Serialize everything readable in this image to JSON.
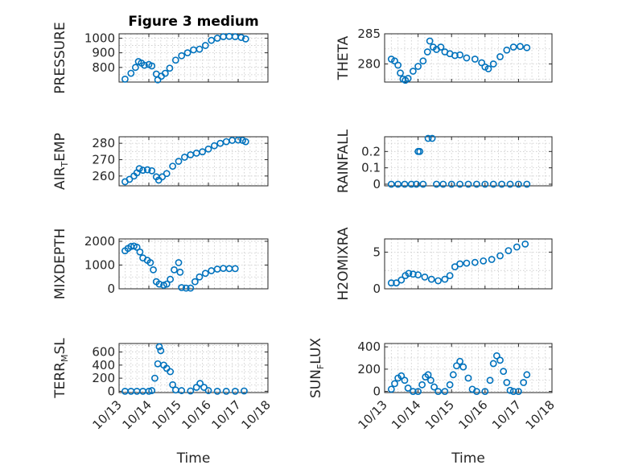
{
  "figure": {
    "title": "Figure 3 medium"
  },
  "style": {
    "marker_color": "#0072bd",
    "axis_color": "#262626",
    "grid_color": "#c8c8c8"
  },
  "chart_data": [
    {
      "type": "scatter",
      "id": "pressure",
      "title": "Figure 3 medium",
      "ylabel": "PRESSURE",
      "ylabel_parts": [
        {
          "t": "PRESSURE"
        }
      ],
      "xlim": [
        0,
        5
      ],
      "ylim": [
        700,
        1030
      ],
      "yticks": [
        {
          "v": 800,
          "label": "800"
        },
        {
          "v": 900,
          "label": "900"
        },
        {
          "v": 1000,
          "label": "1000"
        }
      ],
      "xticks": [
        0,
        1,
        2,
        3,
        4,
        5
      ],
      "points": [
        [
          0.2,
          720
        ],
        [
          0.4,
          760
        ],
        [
          0.55,
          800
        ],
        [
          0.65,
          840
        ],
        [
          0.75,
          830
        ],
        [
          0.85,
          815
        ],
        [
          1.0,
          820
        ],
        [
          1.1,
          810
        ],
        [
          1.25,
          755
        ],
        [
          1.3,
          715
        ],
        [
          1.42,
          740
        ],
        [
          1.55,
          760
        ],
        [
          1.7,
          795
        ],
        [
          1.9,
          850
        ],
        [
          2.1,
          880
        ],
        [
          2.3,
          900
        ],
        [
          2.5,
          920
        ],
        [
          2.7,
          925
        ],
        [
          2.9,
          950
        ],
        [
          3.1,
          985
        ],
        [
          3.3,
          1000
        ],
        [
          3.5,
          1010
        ],
        [
          3.7,
          1012
        ],
        [
          3.9,
          1010
        ],
        [
          4.1,
          1005
        ],
        [
          4.25,
          995
        ]
      ]
    },
    {
      "type": "scatter",
      "id": "theta",
      "ylabel": "THETA",
      "ylabel_parts": [
        {
          "t": "THETA"
        }
      ],
      "xlim": [
        0,
        5
      ],
      "ylim": [
        277,
        285
      ],
      "yticks": [
        {
          "v": 280,
          "label": "280"
        },
        {
          "v": 285,
          "label": "285"
        }
      ],
      "xticks": [
        0,
        1,
        2,
        3,
        4,
        5
      ],
      "points": [
        [
          0.2,
          280.8
        ],
        [
          0.3,
          280.5
        ],
        [
          0.4,
          279.8
        ],
        [
          0.47,
          278.5
        ],
        [
          0.55,
          277.5
        ],
        [
          0.62,
          277.3
        ],
        [
          0.7,
          277.6
        ],
        [
          0.85,
          278.8
        ],
        [
          1.0,
          279.6
        ],
        [
          1.15,
          280.5
        ],
        [
          1.28,
          282.0
        ],
        [
          1.35,
          283.8
        ],
        [
          1.45,
          282.8
        ],
        [
          1.55,
          282.4
        ],
        [
          1.68,
          282.8
        ],
        [
          1.8,
          282.0
        ],
        [
          1.95,
          281.7
        ],
        [
          2.1,
          281.4
        ],
        [
          2.25,
          281.5
        ],
        [
          2.45,
          281.0
        ],
        [
          2.7,
          280.8
        ],
        [
          2.9,
          280.2
        ],
        [
          3.0,
          279.5
        ],
        [
          3.1,
          279.2
        ],
        [
          3.25,
          280.0
        ],
        [
          3.45,
          281.2
        ],
        [
          3.65,
          282.3
        ],
        [
          3.85,
          282.8
        ],
        [
          4.05,
          282.9
        ],
        [
          4.25,
          282.7
        ]
      ]
    },
    {
      "type": "scatter",
      "id": "air-temp",
      "ylabel": "AIR_TEMP",
      "ylabel_parts": [
        {
          "t": "AIR"
        },
        {
          "t": "T",
          "sub": true
        },
        {
          "t": "EMP"
        }
      ],
      "xlim": [
        0,
        5
      ],
      "ylim": [
        254,
        284
      ],
      "yticks": [
        {
          "v": 260,
          "label": "260"
        },
        {
          "v": 270,
          "label": "270"
        },
        {
          "v": 280,
          "label": "280"
        }
      ],
      "xticks": [
        0,
        1,
        2,
        3,
        4,
        5
      ],
      "points": [
        [
          0.2,
          256.5
        ],
        [
          0.35,
          258
        ],
        [
          0.5,
          260
        ],
        [
          0.6,
          262
        ],
        [
          0.68,
          264.5
        ],
        [
          0.8,
          263.5
        ],
        [
          0.95,
          263.8
        ],
        [
          1.1,
          263.2
        ],
        [
          1.25,
          259.5
        ],
        [
          1.33,
          257.5
        ],
        [
          1.45,
          259.5
        ],
        [
          1.6,
          261.5
        ],
        [
          1.8,
          266
        ],
        [
          2.0,
          269
        ],
        [
          2.2,
          271.5
        ],
        [
          2.4,
          273
        ],
        [
          2.6,
          274
        ],
        [
          2.8,
          274.8
        ],
        [
          3.0,
          276.5
        ],
        [
          3.2,
          278.5
        ],
        [
          3.4,
          280
        ],
        [
          3.6,
          281
        ],
        [
          3.8,
          281.8
        ],
        [
          4.0,
          282
        ],
        [
          4.15,
          281.8
        ],
        [
          4.25,
          281
        ]
      ]
    },
    {
      "type": "scatter",
      "id": "rainfall",
      "ylabel": "RAINFALL",
      "ylabel_parts": [
        {
          "t": "RAINFALL"
        }
      ],
      "xlim": [
        0,
        5
      ],
      "ylim": [
        -0.01,
        0.29
      ],
      "yticks": [
        {
          "v": 0,
          "label": "0"
        },
        {
          "v": 0.1,
          "label": "0.1"
        },
        {
          "v": 0.2,
          "label": "0.2"
        }
      ],
      "xticks": [
        0,
        1,
        2,
        3,
        4,
        5
      ],
      "points": [
        [
          0.2,
          0
        ],
        [
          0.4,
          0
        ],
        [
          0.6,
          0
        ],
        [
          0.8,
          0
        ],
        [
          0.95,
          0
        ],
        [
          1.0,
          0.2
        ],
        [
          1.05,
          0.2
        ],
        [
          1.15,
          0
        ],
        [
          1.3,
          0.28
        ],
        [
          1.42,
          0.28
        ],
        [
          1.55,
          0
        ],
        [
          1.75,
          0
        ],
        [
          2.0,
          0
        ],
        [
          2.25,
          0
        ],
        [
          2.5,
          0
        ],
        [
          2.75,
          0
        ],
        [
          3.0,
          0
        ],
        [
          3.25,
          0
        ],
        [
          3.5,
          0
        ],
        [
          3.75,
          0
        ],
        [
          4.0,
          0
        ],
        [
          4.25,
          0
        ]
      ]
    },
    {
      "type": "scatter",
      "id": "mixdepth",
      "ylabel": "MIXDEPTH",
      "ylabel_parts": [
        {
          "t": "MIXDEPTH"
        }
      ],
      "xlim": [
        0,
        5
      ],
      "ylim": [
        0,
        2100
      ],
      "yticks": [
        {
          "v": 0,
          "label": "0"
        },
        {
          "v": 1000,
          "label": "1000"
        },
        {
          "v": 2000,
          "label": "2000"
        }
      ],
      "xticks": [
        0,
        1,
        2,
        3,
        4,
        5
      ],
      "points": [
        [
          0.2,
          1600
        ],
        [
          0.3,
          1700
        ],
        [
          0.4,
          1780
        ],
        [
          0.5,
          1800
        ],
        [
          0.6,
          1750
        ],
        [
          0.7,
          1550
        ],
        [
          0.8,
          1300
        ],
        [
          0.95,
          1200
        ],
        [
          1.05,
          1100
        ],
        [
          1.15,
          800
        ],
        [
          1.25,
          300
        ],
        [
          1.35,
          200
        ],
        [
          1.5,
          150
        ],
        [
          1.6,
          200
        ],
        [
          1.72,
          400
        ],
        [
          1.85,
          800
        ],
        [
          2.0,
          1100
        ],
        [
          2.05,
          700
        ],
        [
          2.1,
          50
        ],
        [
          2.25,
          30
        ],
        [
          2.4,
          30
        ],
        [
          2.55,
          300
        ],
        [
          2.7,
          500
        ],
        [
          2.9,
          650
        ],
        [
          3.1,
          760
        ],
        [
          3.3,
          830
        ],
        [
          3.5,
          860
        ],
        [
          3.7,
          850
        ],
        [
          3.9,
          850
        ]
      ]
    },
    {
      "type": "scatter",
      "id": "h2omixra",
      "ylabel": "H2OMIXRA",
      "ylabel_parts": [
        {
          "t": "H2OMIXRA"
        }
      ],
      "xlim": [
        0,
        5
      ],
      "ylim": [
        0,
        6.8
      ],
      "yticks": [
        {
          "v": 0,
          "label": "0"
        },
        {
          "v": 5,
          "label": "5"
        }
      ],
      "xticks": [
        0,
        1,
        2,
        3,
        4,
        5
      ],
      "points": [
        [
          0.2,
          0.8
        ],
        [
          0.35,
          0.8
        ],
        [
          0.5,
          1.2
        ],
        [
          0.62,
          1.8
        ],
        [
          0.72,
          2.1
        ],
        [
          0.85,
          2.0
        ],
        [
          1.0,
          1.9
        ],
        [
          1.2,
          1.6
        ],
        [
          1.4,
          1.3
        ],
        [
          1.6,
          1.1
        ],
        [
          1.8,
          1.3
        ],
        [
          1.95,
          1.8
        ],
        [
          2.1,
          3.0
        ],
        [
          2.25,
          3.4
        ],
        [
          2.45,
          3.5
        ],
        [
          2.7,
          3.6
        ],
        [
          2.95,
          3.8
        ],
        [
          3.2,
          4.0
        ],
        [
          3.45,
          4.5
        ],
        [
          3.7,
          5.2
        ],
        [
          3.95,
          5.7
        ],
        [
          4.2,
          6.1
        ]
      ]
    },
    {
      "type": "scatter",
      "id": "terrmsl",
      "ylabel": "TERR_MSL",
      "ylabel_parts": [
        {
          "t": "TERR"
        },
        {
          "t": "M",
          "sub": true
        },
        {
          "t": "SL"
        }
      ],
      "xlim": [
        0,
        5
      ],
      "ylim": [
        -20,
        730
      ],
      "yticks": [
        {
          "v": 0,
          "label": "0"
        },
        {
          "v": 200,
          "label": "200"
        },
        {
          "v": 400,
          "label": "400"
        },
        {
          "v": 600,
          "label": "600"
        }
      ],
      "xticks": [
        0,
        1,
        2,
        3,
        4,
        5
      ],
      "points": [
        [
          0.2,
          0
        ],
        [
          0.4,
          0
        ],
        [
          0.6,
          0
        ],
        [
          0.8,
          0
        ],
        [
          1.0,
          0
        ],
        [
          1.1,
          10
        ],
        [
          1.2,
          200
        ],
        [
          1.3,
          420
        ],
        [
          1.35,
          680
        ],
        [
          1.4,
          620
        ],
        [
          1.5,
          400
        ],
        [
          1.6,
          350
        ],
        [
          1.72,
          300
        ],
        [
          1.8,
          100
        ],
        [
          1.9,
          20
        ],
        [
          2.1,
          10
        ],
        [
          2.4,
          5
        ],
        [
          2.6,
          60
        ],
        [
          2.72,
          120
        ],
        [
          2.85,
          60
        ],
        [
          3.0,
          10
        ],
        [
          3.3,
          0
        ],
        [
          3.6,
          0
        ],
        [
          3.9,
          0
        ],
        [
          4.2,
          5
        ]
      ]
    },
    {
      "type": "scatter",
      "id": "sunflux",
      "ylabel": "SUN_FLUX",
      "ylabel_parts": [
        {
          "t": "SUN"
        },
        {
          "t": "F",
          "sub": true
        },
        {
          "t": "LUX"
        }
      ],
      "xlim": [
        0,
        5
      ],
      "ylim": [
        -10,
        430
      ],
      "yticks": [
        {
          "v": 0,
          "label": "0"
        },
        {
          "v": 200,
          "label": "200"
        },
        {
          "v": 400,
          "label": "400"
        }
      ],
      "xticks": [
        0,
        1,
        2,
        3,
        4,
        5
      ],
      "points": [
        [
          0.2,
          20
        ],
        [
          0.3,
          70
        ],
        [
          0.4,
          120
        ],
        [
          0.5,
          140
        ],
        [
          0.6,
          100
        ],
        [
          0.7,
          30
        ],
        [
          0.85,
          0
        ],
        [
          1.0,
          0
        ],
        [
          1.12,
          60
        ],
        [
          1.22,
          130
        ],
        [
          1.3,
          150
        ],
        [
          1.38,
          100
        ],
        [
          1.48,
          40
        ],
        [
          1.6,
          0
        ],
        [
          1.8,
          0
        ],
        [
          1.95,
          60
        ],
        [
          2.05,
          150
        ],
        [
          2.15,
          230
        ],
        [
          2.25,
          270
        ],
        [
          2.35,
          220
        ],
        [
          2.5,
          120
        ],
        [
          2.62,
          20
        ],
        [
          2.75,
          0
        ],
        [
          3.0,
          0
        ],
        [
          3.15,
          100
        ],
        [
          3.25,
          250
        ],
        [
          3.35,
          320
        ],
        [
          3.45,
          280
        ],
        [
          3.55,
          180
        ],
        [
          3.65,
          80
        ],
        [
          3.75,
          10
        ],
        [
          3.85,
          0
        ],
        [
          4.0,
          0
        ],
        [
          4.15,
          80
        ],
        [
          4.25,
          150
        ]
      ]
    }
  ],
  "x_axis": {
    "tick_labels": [
      "10/13",
      "10/14",
      "10/15",
      "10/16",
      "10/17",
      "10/18"
    ],
    "label": "Time"
  }
}
